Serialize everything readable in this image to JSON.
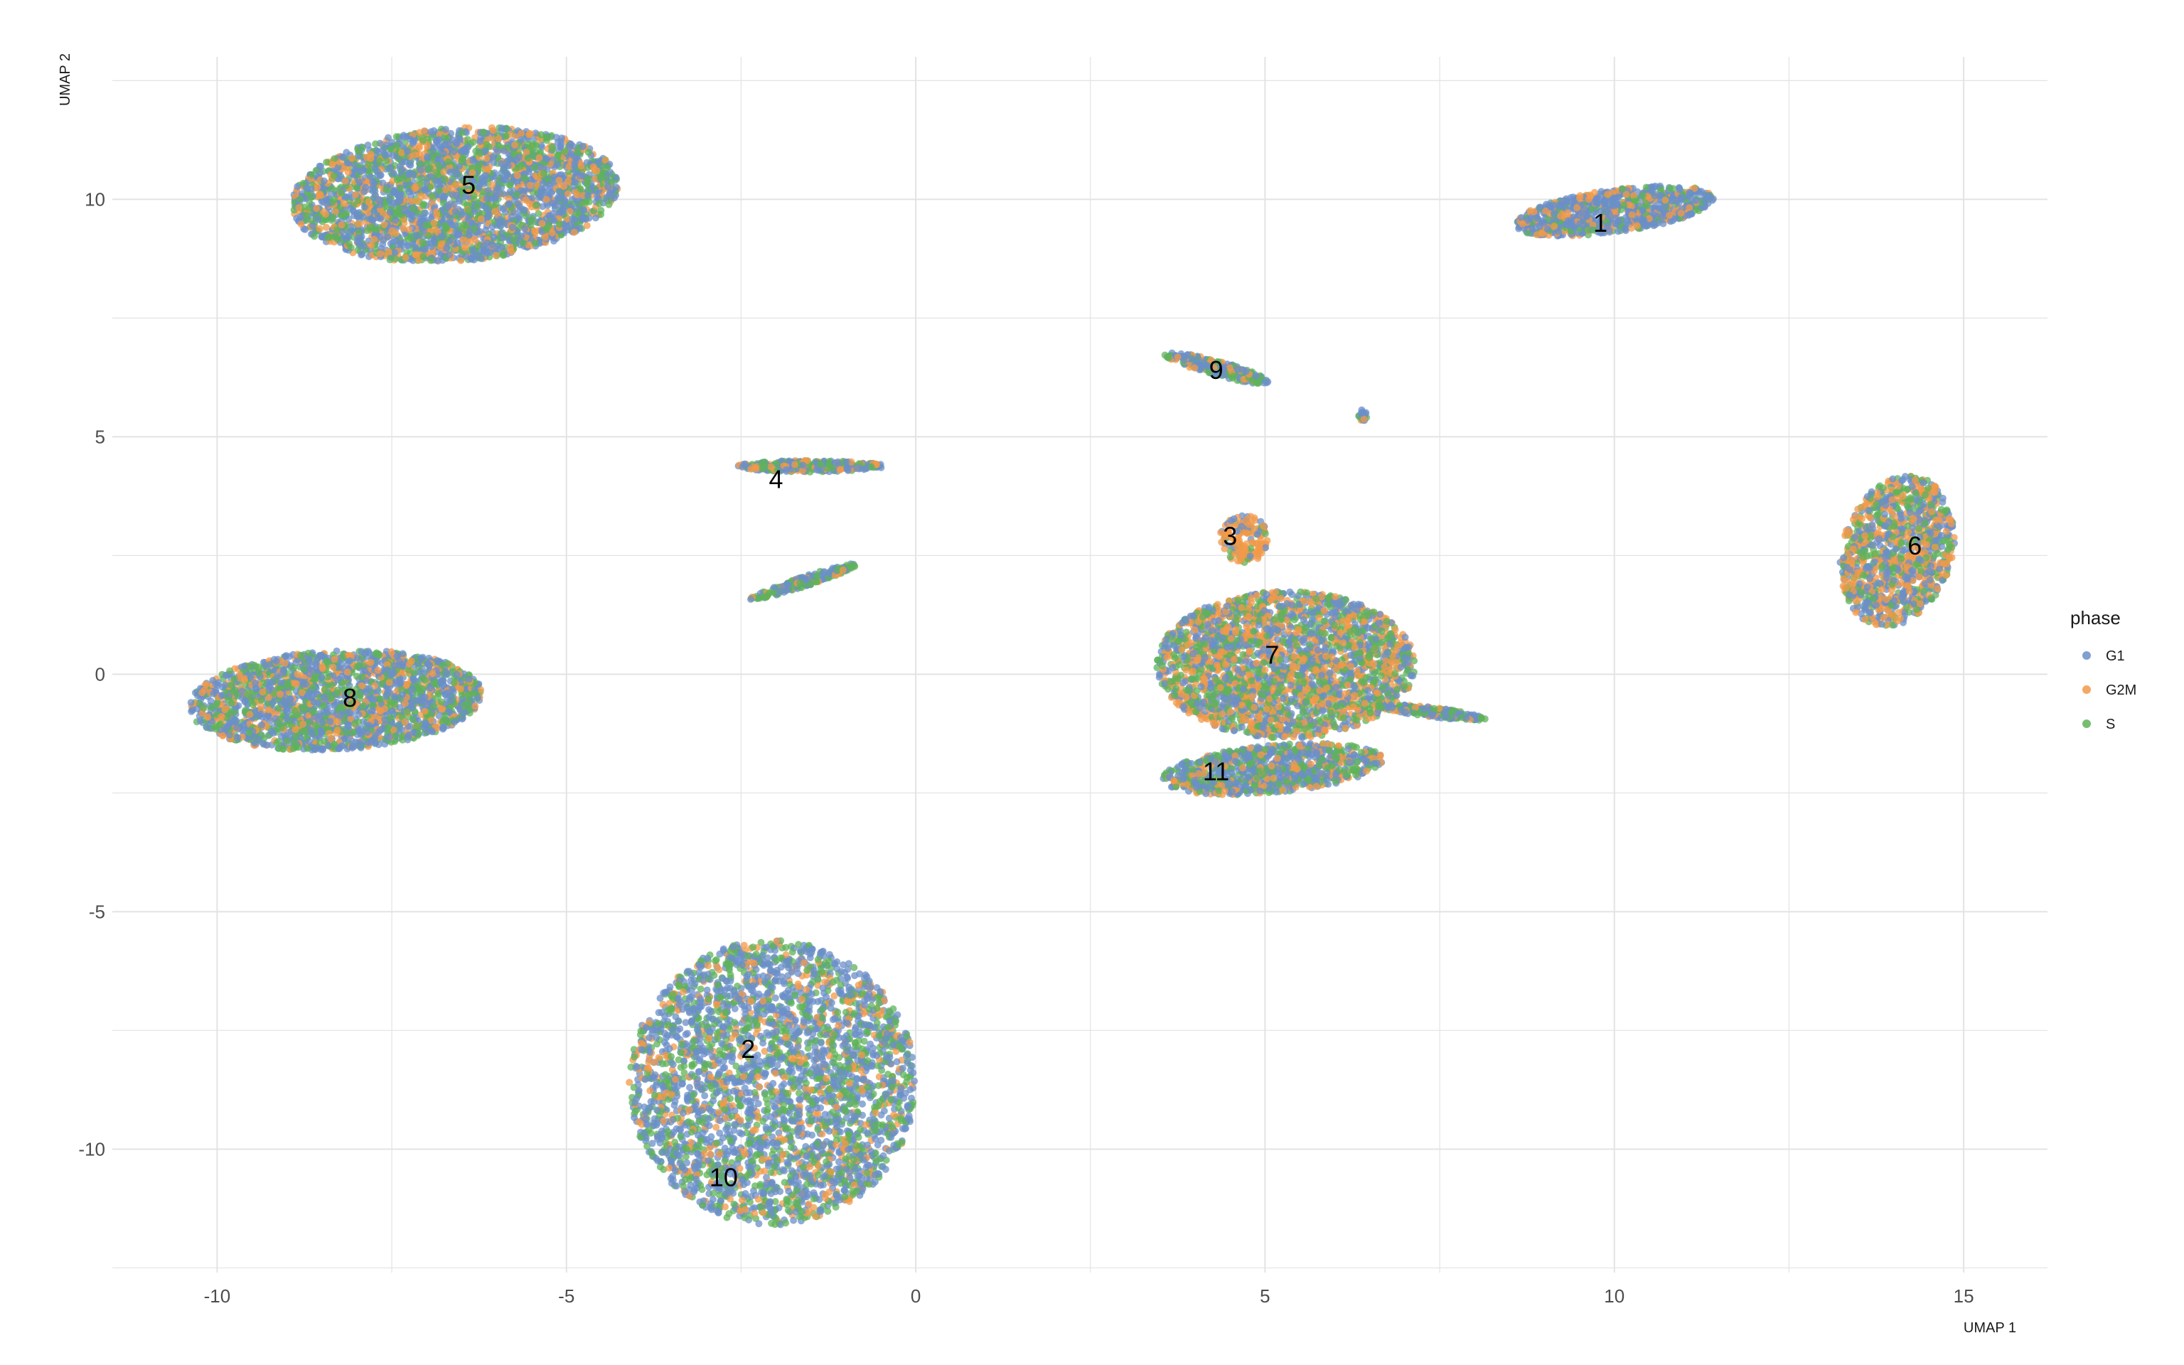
{
  "chart_data": {
    "type": "scatter",
    "title": "",
    "xlabel": "UMAP 1",
    "ylabel": "UMAP 2",
    "xlim": [
      -11.5,
      16.2
    ],
    "ylim": [
      -12.6,
      13.0
    ],
    "xticks": [
      -10,
      -5,
      0,
      5,
      10,
      15
    ],
    "yticks": [
      -10,
      -5,
      0,
      5,
      10
    ],
    "xtick_labels": [
      "-10",
      "-5",
      "0",
      "5",
      "10",
      "15"
    ],
    "ytick_labels": [
      "-10",
      "-5",
      "0",
      "5",
      "10"
    ],
    "grid": true,
    "legend": {
      "title": "phase",
      "placement": "right",
      "entries": [
        {
          "name": "G1",
          "color": "#6b8fc8"
        },
        {
          "name": "G2M",
          "color": "#f2994a"
        },
        {
          "name": "S",
          "color": "#5fb35a"
        }
      ]
    },
    "clusters": [
      {
        "label": "1",
        "x": 9.8,
        "y": 9.5
      },
      {
        "label": "2",
        "x": -2.4,
        "y": -7.9
      },
      {
        "label": "3",
        "x": 4.5,
        "y": 2.9
      },
      {
        "label": "4",
        "x": -2.0,
        "y": 4.1
      },
      {
        "label": "5",
        "x": -6.4,
        "y": 10.3
      },
      {
        "label": "6",
        "x": 14.3,
        "y": 2.7
      },
      {
        "label": "7",
        "x": 5.1,
        "y": 0.4
      },
      {
        "label": "8",
        "x": -8.1,
        "y": -0.5
      },
      {
        "label": "9",
        "x": 4.3,
        "y": 6.4
      },
      {
        "label": "10",
        "x": -2.75,
        "y": -10.6
      },
      {
        "label": "11",
        "x": 4.3,
        "y": -2.05
      }
    ]
  }
}
